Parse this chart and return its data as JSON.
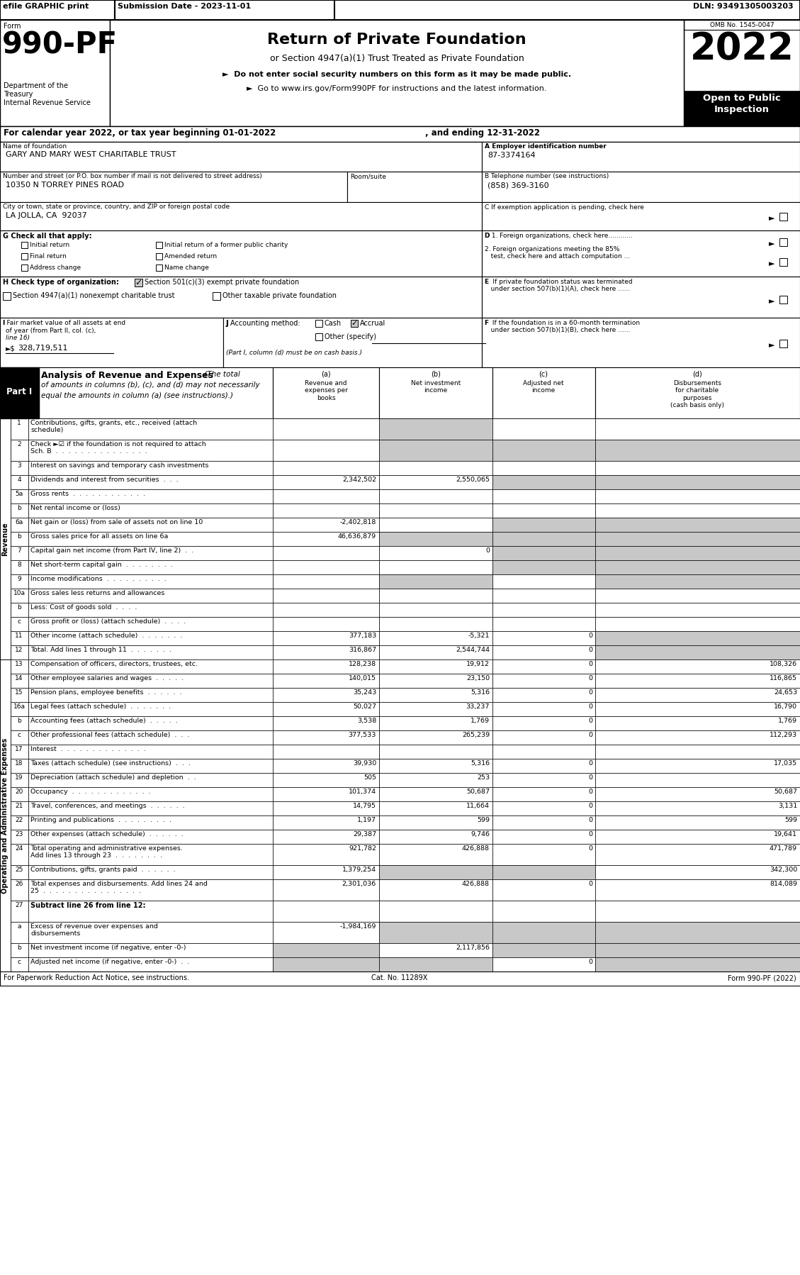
{
  "efile_bar": "efile GRAPHIC print",
  "submission_date": "Submission Date - 2023-11-01",
  "dln": "DLN: 93491305003203",
  "omb": "OMB No. 1545-0047",
  "form_number": "990-PF",
  "year": "2022",
  "dept1": "Department of the",
  "dept2": "Treasury",
  "dept3": "Internal Revenue Service",
  "title": "Return of Private Foundation",
  "subtitle": "or Section 4947(a)(1) Trust Treated as Private Foundation",
  "bullet1": "►  Do not enter social security numbers on this form as it may be made public.",
  "bullet2": "►  Go to www.irs.gov/Form990PF for instructions and the latest information.",
  "cal_year_line": "For calendar year 2022, or tax year beginning 01-01-2022",
  "cal_year_end": ", and ending 12-31-2022",
  "name_label": "Name of foundation",
  "name_value": "GARY AND MARY WEST CHARITABLE TRUST",
  "ein_label": "A Employer identification number",
  "ein_value": "87-3374164",
  "address_label": "Number and street (or P.O. box number if mail is not delivered to street address)",
  "room_label": "Room/suite",
  "address_value": "10350 N TORREY PINES ROAD",
  "phone_label": "B Telephone number (see instructions)",
  "phone_value": "(858) 369-3160",
  "city_label": "City or town, state or province, country, and ZIP or foreign postal code",
  "city_value": "LA JOLLA, CA  92037",
  "c_label": "C If exemption application is pending, check here",
  "g_items": [
    "Initial return",
    "Initial return of a former public charity",
    "Final return",
    "Amended return",
    "Address change",
    "Name change"
  ],
  "d1_label": "D 1. Foreign organizations, check here............",
  "d2_label": "2. Foreign organizations meeting the 85%\n   test, check here and attach computation ...",
  "e_label": "E  If private foundation status was terminated\n   under section 507(b)(1)(A), check here ......",
  "h_checked": "Section 501(c)(3) exempt private foundation",
  "h_unchecked1": "Section 4947(a)(1) nonexempt charitable trust",
  "h_unchecked2": "Other taxable private foundation",
  "f_label": "F  If the foundation is in a 60-month termination\n   under section 507(b)(1)(B), check here ......",
  "i_value": "328,719,511",
  "j_note": "(Part I, column (d) must be on cash basis.)",
  "footer_left": "For Paperwork Reduction Act Notice, see instructions.",
  "footer_center": "Cat. No. 11289X",
  "footer_right": "Form 990-PF (2022)",
  "rows": [
    {
      "num": "1",
      "label": "Contributions, gifts, grants, etc., received (attach\nschedule)",
      "a": "",
      "b": "",
      "c": "",
      "d": "",
      "sha": false,
      "shb": true,
      "shc": false,
      "shd": false
    },
    {
      "num": "2",
      "label": "Check ►☑ if the foundation is not required to attach\nSch. B  .  .  .  .  .  .  .  .  .  .  .  .  .  .  .",
      "a": "",
      "b": "",
      "c": "",
      "d": "",
      "sha": false,
      "shb": true,
      "shc": true,
      "shd": true
    },
    {
      "num": "3",
      "label": "Interest on savings and temporary cash investments",
      "a": "",
      "b": "",
      "c": "",
      "d": "",
      "sha": false,
      "shb": false,
      "shc": false,
      "shd": false
    },
    {
      "num": "4",
      "label": "Dividends and interest from securities  .  .  .",
      "a": "2,342,502",
      "b": "2,550,065",
      "c": "",
      "d": "",
      "sha": false,
      "shb": false,
      "shc": true,
      "shd": true
    },
    {
      "num": "5a",
      "label": "Gross rents  .  .  .  .  .  .  .  .  .  .  .  .",
      "a": "",
      "b": "",
      "c": "",
      "d": "",
      "sha": false,
      "shb": false,
      "shc": false,
      "shd": false
    },
    {
      "num": "b",
      "label": "Net rental income or (loss)",
      "a": "",
      "b": "",
      "c": "",
      "d": "",
      "sha": false,
      "shb": false,
      "shc": false,
      "shd": false
    },
    {
      "num": "6a",
      "label": "Net gain or (loss) from sale of assets not on line 10",
      "a": "-2,402,818",
      "b": "",
      "c": "",
      "d": "",
      "sha": false,
      "shb": false,
      "shc": true,
      "shd": true
    },
    {
      "num": "b",
      "label": "Gross sales price for all assets on line 6a",
      "a": "46,636,879",
      "b": "",
      "c": "",
      "d": "",
      "sha": false,
      "shb": true,
      "shc": true,
      "shd": true
    },
    {
      "num": "7",
      "label": "Capital gain net income (from Part IV, line 2)  .  .",
      "a": "",
      "b": "0",
      "c": "",
      "d": "",
      "sha": false,
      "shb": false,
      "shc": true,
      "shd": true
    },
    {
      "num": "8",
      "label": "Net short-term capital gain  .  .  .  .  .  .  .  .",
      "a": "",
      "b": "",
      "c": "",
      "d": "",
      "sha": false,
      "shb": false,
      "shc": true,
      "shd": true
    },
    {
      "num": "9",
      "label": "Income modifications  .  .  .  .  .  .  .  .  .  .",
      "a": "",
      "b": "",
      "c": "",
      "d": "",
      "sha": false,
      "shb": true,
      "shc": false,
      "shd": true
    },
    {
      "num": "10a",
      "label": "Gross sales less returns and allowances",
      "a": "",
      "b": "",
      "c": "",
      "d": "",
      "sha": false,
      "shb": false,
      "shc": false,
      "shd": false
    },
    {
      "num": "b",
      "label": "Less: Cost of goods sold  .  .  .  .",
      "a": "",
      "b": "",
      "c": "",
      "d": "",
      "sha": false,
      "shb": false,
      "shc": false,
      "shd": false
    },
    {
      "num": "c",
      "label": "Gross profit or (loss) (attach schedule)  .  .  .  .",
      "a": "",
      "b": "",
      "c": "",
      "d": "",
      "sha": false,
      "shb": false,
      "shc": false,
      "shd": false
    },
    {
      "num": "11",
      "label": "Other income (attach schedule)  .  .  .  .  .  .  .",
      "a": "377,183",
      "b": "-5,321",
      "c": "0",
      "d": "",
      "sha": false,
      "shb": false,
      "shc": false,
      "shd": true
    },
    {
      "num": "12",
      "label": "Total. Add lines 1 through 11  .  .  .  .  .  .  .",
      "a": "316,867",
      "b": "2,544,744",
      "c": "0",
      "d": "",
      "sha": false,
      "shb": false,
      "shc": false,
      "shd": true
    },
    {
      "num": "13",
      "label": "Compensation of officers, directors, trustees, etc.",
      "a": "128,238",
      "b": "19,912",
      "c": "0",
      "d": "108,326",
      "sha": false,
      "shb": false,
      "shc": false,
      "shd": false
    },
    {
      "num": "14",
      "label": "Other employee salaries and wages  .  .  .  .  .",
      "a": "140,015",
      "b": "23,150",
      "c": "0",
      "d": "116,865",
      "sha": false,
      "shb": false,
      "shc": false,
      "shd": false
    },
    {
      "num": "15",
      "label": "Pension plans, employee benefits  .  .  .  .  .  .",
      "a": "35,243",
      "b": "5,316",
      "c": "0",
      "d": "24,653",
      "sha": false,
      "shb": false,
      "shc": false,
      "shd": false
    },
    {
      "num": "16a",
      "label": "Legal fees (attach schedule)  .  .  .  .  .  .  .",
      "a": "50,027",
      "b": "33,237",
      "c": "0",
      "d": "16,790",
      "sha": false,
      "shb": false,
      "shc": false,
      "shd": false
    },
    {
      "num": "b",
      "label": "Accounting fees (attach schedule)  .  .  .  .  .",
      "a": "3,538",
      "b": "1,769",
      "c": "0",
      "d": "1,769",
      "sha": false,
      "shb": false,
      "shc": false,
      "shd": false
    },
    {
      "num": "c",
      "label": "Other professional fees (attach schedule)  .  .  .",
      "a": "377,533",
      "b": "265,239",
      "c": "0",
      "d": "112,293",
      "sha": false,
      "shb": false,
      "shc": false,
      "shd": false
    },
    {
      "num": "17",
      "label": "Interest  .  .  .  .  .  .  .  .  .  .  .  .  .  .",
      "a": "",
      "b": "",
      "c": "",
      "d": "",
      "sha": false,
      "shb": false,
      "shc": false,
      "shd": false
    },
    {
      "num": "18",
      "label": "Taxes (attach schedule) (see instructions)  .  .  .",
      "a": "39,930",
      "b": "5,316",
      "c": "0",
      "d": "17,035",
      "sha": false,
      "shb": false,
      "shc": false,
      "shd": false
    },
    {
      "num": "19",
      "label": "Depreciation (attach schedule) and depletion  .  .",
      "a": "505",
      "b": "253",
      "c": "0",
      "d": "",
      "sha": false,
      "shb": false,
      "shc": false,
      "shd": false
    },
    {
      "num": "20",
      "label": "Occupancy  .  .  .  .  .  .  .  .  .  .  .  .  .",
      "a": "101,374",
      "b": "50,687",
      "c": "0",
      "d": "50,687",
      "sha": false,
      "shb": false,
      "shc": false,
      "shd": false
    },
    {
      "num": "21",
      "label": "Travel, conferences, and meetings  .  .  .  .  .  .",
      "a": "14,795",
      "b": "11,664",
      "c": "0",
      "d": "3,131",
      "sha": false,
      "shb": false,
      "shc": false,
      "shd": false
    },
    {
      "num": "22",
      "label": "Printing and publications  .  .  .  .  .  .  .  .  .",
      "a": "1,197",
      "b": "599",
      "c": "0",
      "d": "599",
      "sha": false,
      "shb": false,
      "shc": false,
      "shd": false
    },
    {
      "num": "23",
      "label": "Other expenses (attach schedule)  .  .  .  .  .  .",
      "a": "29,387",
      "b": "9,746",
      "c": "0",
      "d": "19,641",
      "sha": false,
      "shb": false,
      "shc": false,
      "shd": false
    },
    {
      "num": "24",
      "label": "Total operating and administrative expenses.\nAdd lines 13 through 23  .  .  .  .  .  .  .  .",
      "a": "921,782",
      "b": "426,888",
      "c": "0",
      "d": "471,789",
      "sha": false,
      "shb": false,
      "shc": false,
      "shd": false
    },
    {
      "num": "25",
      "label": "Contributions, gifts, grants paid  .  .  .  .  .  .",
      "a": "1,379,254",
      "b": "",
      "c": "",
      "d": "342,300",
      "sha": false,
      "shb": true,
      "shc": true,
      "shd": false
    },
    {
      "num": "26",
      "label": "Total expenses and disbursements. Add lines 24 and\n25  .  .  .  .  .  .  .  .  .  .  .  .  .  .  .  .",
      "a": "2,301,036",
      "b": "426,888",
      "c": "0",
      "d": "814,089",
      "sha": false,
      "shb": false,
      "shc": false,
      "shd": false
    },
    {
      "num": "27",
      "label": "Subtract line 26 from line 12:",
      "a": "",
      "b": "",
      "c": "",
      "d": "",
      "sha": false,
      "shb": false,
      "shc": false,
      "shd": false,
      "header": true
    },
    {
      "num": "a",
      "label": "Excess of revenue over expenses and\ndisbursements",
      "a": "-1,984,169",
      "b": "",
      "c": "",
      "d": "",
      "sha": false,
      "shb": true,
      "shc": true,
      "shd": true
    },
    {
      "num": "b",
      "label": "Net investment income (if negative, enter -0-)",
      "a": "",
      "b": "2,117,856",
      "c": "",
      "d": "",
      "sha": true,
      "shb": false,
      "shc": true,
      "shd": true
    },
    {
      "num": "c",
      "label": "Adjusted net income (if negative, enter -0-)  .  .",
      "a": "",
      "b": "",
      "c": "0",
      "d": "",
      "sha": true,
      "shb": true,
      "shc": false,
      "shd": true
    }
  ]
}
